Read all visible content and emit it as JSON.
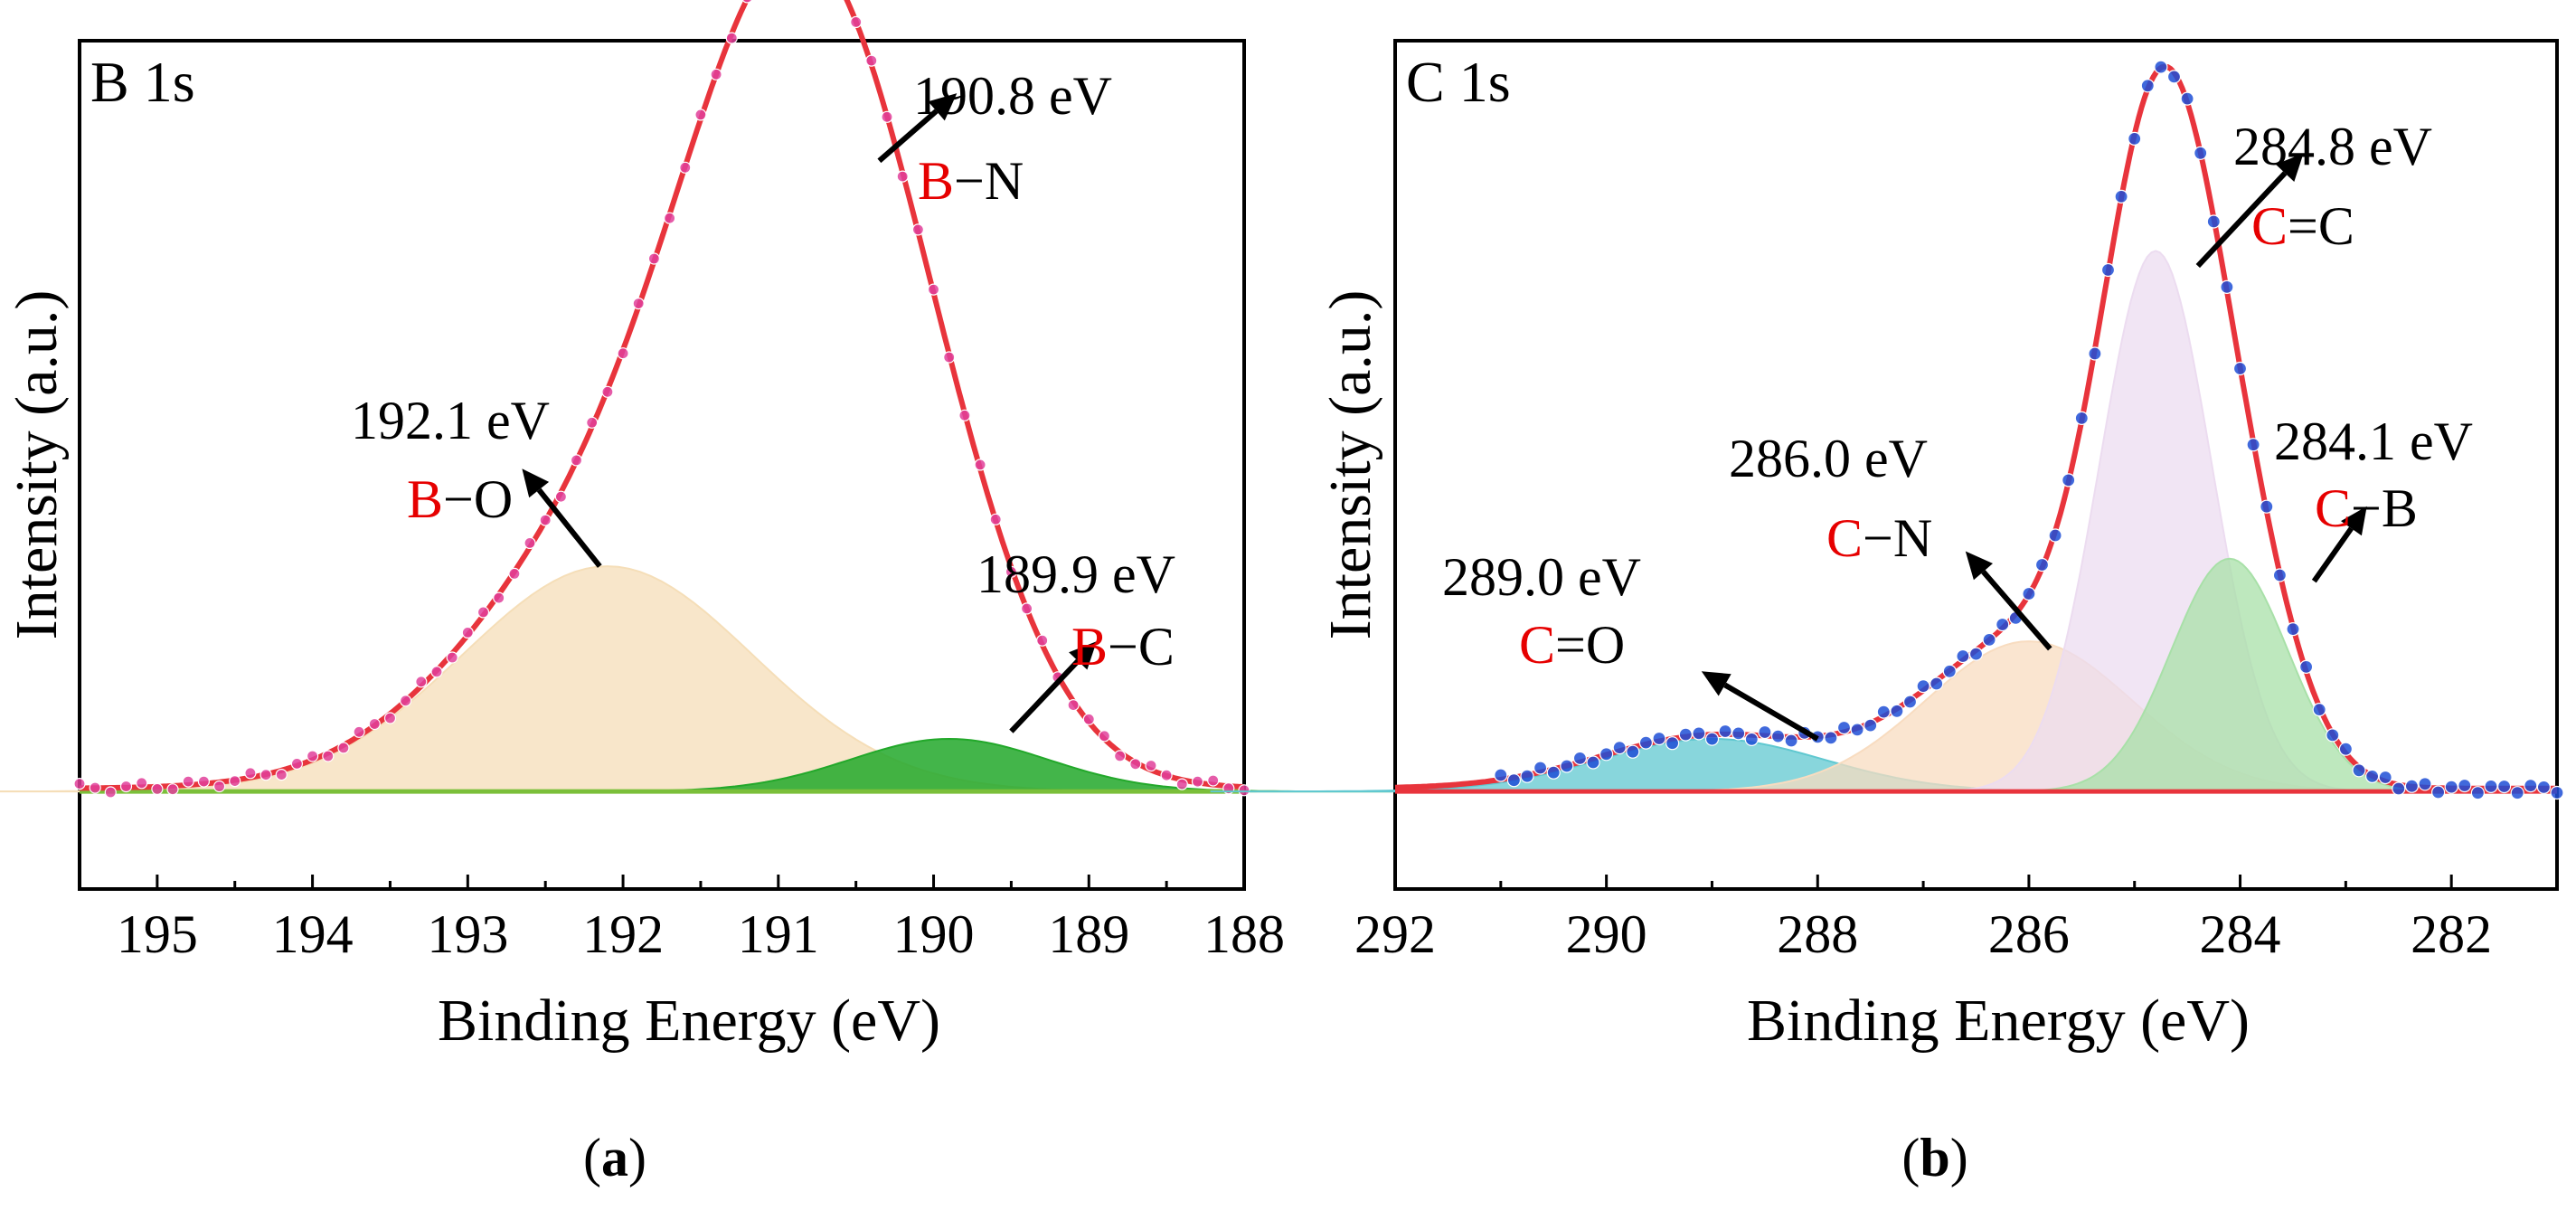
{
  "figure": {
    "panels": [
      {
        "caption_open": "(",
        "caption_letter": "a",
        "caption_close": ")"
      },
      {
        "caption_open": "(",
        "caption_letter": "b",
        "caption_close": ")"
      }
    ]
  },
  "colors": {
    "fit": "#e8343c",
    "axis": "#000000",
    "marker_a": "#e0409a",
    "marker_b": "#1f4fd6",
    "label_red": "#e60000",
    "b_o_fill": "#f5deb8",
    "b_c_fill": "#22a82a",
    "c_c_fill": "#ecdcf0",
    "c_b_fill": "#a8e0a8",
    "c_n_fill": "#f8dcc0",
    "c_o_fill": "#60c8d0"
  },
  "chart_data": [
    {
      "type": "line",
      "corner_label": "B 1s",
      "xlabel": "Binding Energy (eV)",
      "ylabel": "Intensity (a.u.)",
      "xlim": [
        195.5,
        188
      ],
      "ylim": [
        -0.13,
        1.0
      ],
      "x_reversed": true,
      "xticks": [
        {
          "value": 195,
          "label": "195"
        },
        {
          "value": 194,
          "label": "194"
        },
        {
          "value": 193,
          "label": "193"
        },
        {
          "value": 192,
          "label": "192"
        },
        {
          "value": 191,
          "label": "191"
        },
        {
          "value": 190,
          "label": "190"
        },
        {
          "value": 189,
          "label": "189"
        },
        {
          "value": 188,
          "label": "188"
        }
      ],
      "baseline": 0.0,
      "components": [
        {
          "name": "B-O",
          "center": 192.1,
          "height": 0.3,
          "fwhm": 2.2,
          "color_key": "b_o_fill"
        },
        {
          "name": "B-N",
          "center": 190.8,
          "height": 0.98,
          "fwhm": 1.8,
          "color_key": "fit"
        },
        {
          "name": "B-C",
          "center": 189.9,
          "height": 0.07,
          "fwhm": 1.5,
          "color_key": "b_c_fill"
        }
      ],
      "experimental": {
        "x_start": 195.5,
        "x_end": 188,
        "step": 0.1
      },
      "peak_labels": [
        {
          "energy_text": "190.8 eV",
          "element": "B",
          "bond": "−N",
          "bond_text": "B−N",
          "arrow_from": [
            190.35,
            0.84
          ],
          "arrow_to": [
            189.85,
            0.93
          ]
        },
        {
          "energy_text": "192.1 eV",
          "element": "B",
          "bond": "−O",
          "bond_text": "B−O",
          "arrow_from": [
            192.15,
            0.3
          ],
          "arrow_to": [
            192.65,
            0.43
          ]
        },
        {
          "energy_text": "189.9 eV",
          "element": "B",
          "bond": "−C",
          "bond_text": "B−C",
          "arrow_from": [
            189.5,
            0.08
          ],
          "arrow_to": [
            188.95,
            0.2
          ]
        }
      ]
    },
    {
      "type": "line",
      "corner_label": "C 1s",
      "xlabel": "Binding Energy (eV)",
      "ylabel": "Intensity (a.u.)",
      "xlim": [
        292,
        281
      ],
      "ylim": [
        -0.13,
        1.0
      ],
      "x_reversed": true,
      "xticks": [
        {
          "value": 292,
          "label": "292"
        },
        {
          "value": 290,
          "label": "290"
        },
        {
          "value": 288,
          "label": "288"
        },
        {
          "value": 286,
          "label": "286"
        },
        {
          "value": 284,
          "label": "284"
        },
        {
          "value": 282,
          "label": "282"
        }
      ],
      "baseline": 0.0,
      "components": [
        {
          "name": "C=O",
          "center": 289.0,
          "height": 0.07,
          "fwhm": 2.5,
          "color_key": "c_o_fill"
        },
        {
          "name": "C-N",
          "center": 286.0,
          "height": 0.2,
          "fwhm": 2.3,
          "color_key": "c_n_fill"
        },
        {
          "name": "C=C",
          "center": 284.8,
          "height": 0.72,
          "fwhm": 1.25,
          "color_key": "c_c_fill"
        },
        {
          "name": "C-B",
          "center": 284.1,
          "height": 0.31,
          "fwhm": 1.3,
          "color_key": "c_b_fill"
        }
      ],
      "experimental": {
        "x_start": 291.0,
        "x_end": 281,
        "step": 0.125
      },
      "peak_labels": [
        {
          "energy_text": "284.8 eV",
          "element": "C",
          "bond": "=C",
          "bond_text": "C=C",
          "arrow_from": [
            284.4,
            0.7
          ],
          "arrow_to": [
            283.4,
            0.85
          ]
        },
        {
          "energy_text": "284.1 eV",
          "element": "C",
          "bond": "−B",
          "bond_text": "C−B",
          "arrow_from": [
            283.3,
            0.28
          ],
          "arrow_to": [
            282.8,
            0.38
          ]
        },
        {
          "energy_text": "286.0 eV",
          "element": "C",
          "bond": "−N",
          "bond_text": "C−N",
          "arrow_from": [
            285.8,
            0.19
          ],
          "arrow_to": [
            286.6,
            0.32
          ]
        },
        {
          "energy_text": "289.0 eV",
          "element": "C",
          "bond": "=O",
          "bond_text": "C=O",
          "arrow_from": [
            288.0,
            0.07
          ],
          "arrow_to": [
            289.1,
            0.16
          ]
        }
      ]
    }
  ]
}
